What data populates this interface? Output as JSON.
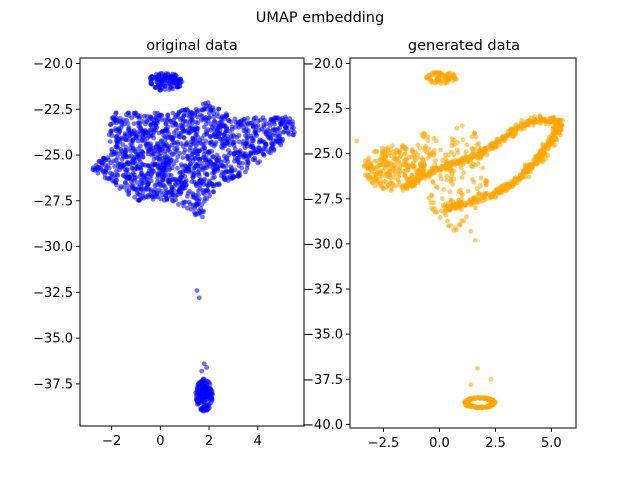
{
  "figure": {
    "suptitle": "UMAP embedding"
  },
  "chart_data": [
    {
      "type": "scatter",
      "title": "original data",
      "color": "#0000ff",
      "xlim": [
        -3.3,
        5.9
      ],
      "ylim": [
        -39.8,
        -19.7
      ],
      "xticks": [
        -2,
        0,
        2,
        4
      ],
      "xtick_labels": [
        "−2",
        "0",
        "2",
        "4"
      ],
      "yticks": [
        -20.0,
        -22.5,
        -25.0,
        -27.5,
        -30.0,
        -32.5,
        -35.0,
        -37.5
      ],
      "ytick_labels": [
        "−20.0",
        "−22.5",
        "−25.0",
        "−27.5",
        "−30.0",
        "−32.5",
        "−35.0",
        "−37.5"
      ],
      "clusters": [
        {
          "name": "main-body",
          "shape": "polygon",
          "count": 1400,
          "polygon": [
            [
              -2.8,
              -25.4
            ],
            [
              -2.2,
              -24.9
            ],
            [
              -2.0,
              -22.7
            ],
            [
              -0.5,
              -22.6
            ],
            [
              0.5,
              -22.7
            ],
            [
              2.0,
              -22.1
            ],
            [
              3.0,
              -23.0
            ],
            [
              5.5,
              -22.9
            ],
            [
              5.6,
              -23.8
            ],
            [
              3.5,
              -26.0
            ],
            [
              2.5,
              -26.6
            ],
            [
              2.0,
              -27.3
            ],
            [
              1.7,
              -28.5
            ],
            [
              0.5,
              -27.5
            ],
            [
              -1.0,
              -27.5
            ],
            [
              -2.0,
              -26.5
            ],
            [
              -2.8,
              -25.8
            ]
          ]
        },
        {
          "name": "top-cap",
          "shape": "ellipse",
          "count": 120,
          "cx": 0.2,
          "cy": -21.0,
          "rx": 0.7,
          "ry": 0.5
        },
        {
          "name": "bottom-blob",
          "shape": "ellipse",
          "count": 160,
          "cx": 1.8,
          "cy": -38.1,
          "rx": 0.35,
          "ry": 0.9
        }
      ],
      "points": [
        [
          1.5,
          -32.4
        ],
        [
          1.6,
          -32.8
        ],
        [
          1.8,
          -36.4
        ],
        [
          1.9,
          -36.6
        ],
        [
          1.7,
          -36.8
        ]
      ]
    },
    {
      "type": "scatter",
      "title": "generated data",
      "color": "#ffa500",
      "xlim": [
        -4.0,
        6.1
      ],
      "ylim": [
        -40.2,
        -19.7
      ],
      "xticks": [
        -2.5,
        0.0,
        2.5,
        5.0
      ],
      "xtick_labels": [
        "−2.5",
        "0.0",
        "2.5",
        "5.0"
      ],
      "yticks": [
        -20.0,
        -22.5,
        -25.0,
        -27.5,
        -30.0,
        -32.5,
        -35.0,
        -37.5,
        -40.0
      ],
      "ytick_labels": [
        "−20.0",
        "−22.5",
        "−25.0",
        "−27.5",
        "−30.0",
        "−32.5",
        "−35.0",
        "−37.5",
        "−40.0"
      ],
      "clusters": [
        {
          "name": "left-mass",
          "shape": "ellipse",
          "count": 260,
          "cx": -2.0,
          "cy": -25.8,
          "rx": 1.4,
          "ry": 1.3
        },
        {
          "name": "scatter-middle",
          "shape": "polygon",
          "count": 160,
          "polygon": [
            [
              -1.0,
              -24.0
            ],
            [
              0.0,
              -23.5
            ],
            [
              1.0,
              -23.0
            ],
            [
              2.0,
              -23.5
            ],
            [
              2.3,
              -26.5
            ],
            [
              1.5,
              -28.5
            ],
            [
              0.8,
              -29.5
            ],
            [
              -0.5,
              -28.0
            ],
            [
              -1.0,
              -26.0
            ]
          ]
        },
        {
          "name": "right-arc",
          "shape": "polyline",
          "count": 700,
          "spread": 0.35,
          "path": [
            [
              0.3,
              -28.0
            ],
            [
              1.5,
              -27.7
            ],
            [
              2.5,
              -27.2
            ],
            [
              3.5,
              -26.4
            ],
            [
              4.5,
              -25.2
            ],
            [
              5.2,
              -24.0
            ],
            [
              5.4,
              -23.2
            ],
            [
              4.5,
              -23.1
            ],
            [
              3.5,
              -23.5
            ],
            [
              2.5,
              -24.5
            ],
            [
              1.5,
              -25.2
            ],
            [
              0.5,
              -25.6
            ],
            [
              -0.5,
              -26.0
            ],
            [
              -1.5,
              -26.8
            ]
          ]
        },
        {
          "name": "top-cap",
          "shape": "ellipse",
          "count": 80,
          "cx": 0.1,
          "cy": -20.8,
          "rx": 0.7,
          "ry": 0.35
        },
        {
          "name": "bottom-ring",
          "shape": "ring",
          "count": 140,
          "cx": 1.8,
          "cy": -38.8,
          "rx": 0.7,
          "ry": 0.3
        }
      ],
      "points": [
        [
          -3.7,
          -24.3
        ],
        [
          1.7,
          -36.9
        ],
        [
          2.3,
          -37.5
        ],
        [
          1.4,
          -37.8
        ],
        [
          1.6,
          -29.8
        ],
        [
          1.4,
          -29.3
        ],
        [
          0.7,
          -29.1
        ],
        [
          0.4,
          -29.0
        ]
      ]
    }
  ]
}
